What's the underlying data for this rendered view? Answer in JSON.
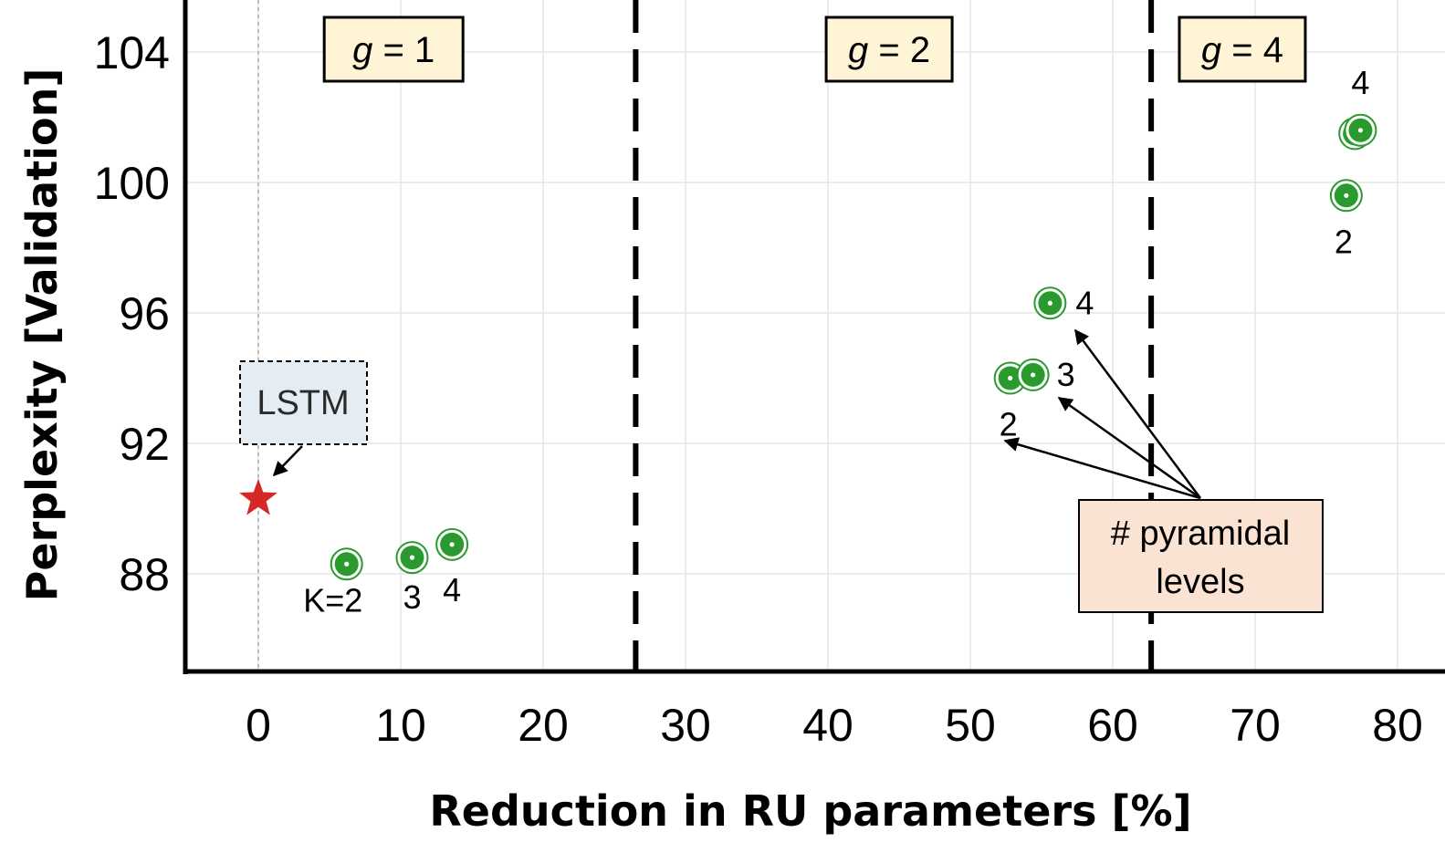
{
  "chart_data": {
    "type": "scatter",
    "title": "",
    "xlabel": "Reduction in RU parameters [%]",
    "ylabel": "Perplexity [Validation]",
    "xlim": [
      -5,
      82
    ],
    "ylim": [
      85,
      106
    ],
    "x_ticks": [
      0,
      10,
      20,
      30,
      40,
      50,
      60,
      70,
      80
    ],
    "y_ticks": [
      88,
      92,
      96,
      100,
      104
    ],
    "group_boundaries": [
      26.5,
      62.7
    ],
    "group_labels": [
      {
        "label_italic": "g",
        "label_rest": " = 1",
        "x_center": 9.5
      },
      {
        "label_italic": "g",
        "label_rest": " = 2",
        "x_center": 44.3
      },
      {
        "label_italic": "g",
        "label_rest": " = 4",
        "x_center": 69.1
      }
    ],
    "baseline": {
      "name": "LSTM",
      "x": 0,
      "y": 90.3,
      "color": "#d62728"
    },
    "series": [
      {
        "name": "g = 1",
        "points": [
          {
            "x": 6.2,
            "y": 88.3,
            "label": "K=2"
          },
          {
            "x": 10.8,
            "y": 88.5,
            "label": "3"
          },
          {
            "x": 13.6,
            "y": 88.9,
            "label": "4"
          }
        ]
      },
      {
        "name": "g = 2",
        "points": [
          {
            "x": 52.8,
            "y": 94.0,
            "label": "2"
          },
          {
            "x": 54.4,
            "y": 94.1,
            "label": "3"
          },
          {
            "x": 55.6,
            "y": 96.3,
            "label": "4"
          }
        ]
      },
      {
        "name": "g = 4",
        "points": [
          {
            "x": 76.4,
            "y": 99.6,
            "label": "2"
          },
          {
            "x": 77.0,
            "y": 101.5,
            "label": ""
          },
          {
            "x": 77.4,
            "y": 101.6,
            "label": "4"
          }
        ]
      }
    ],
    "point_color": "#2a9a2f",
    "annotation": {
      "line1": "#  pyramidal",
      "line2": "levels"
    }
  }
}
